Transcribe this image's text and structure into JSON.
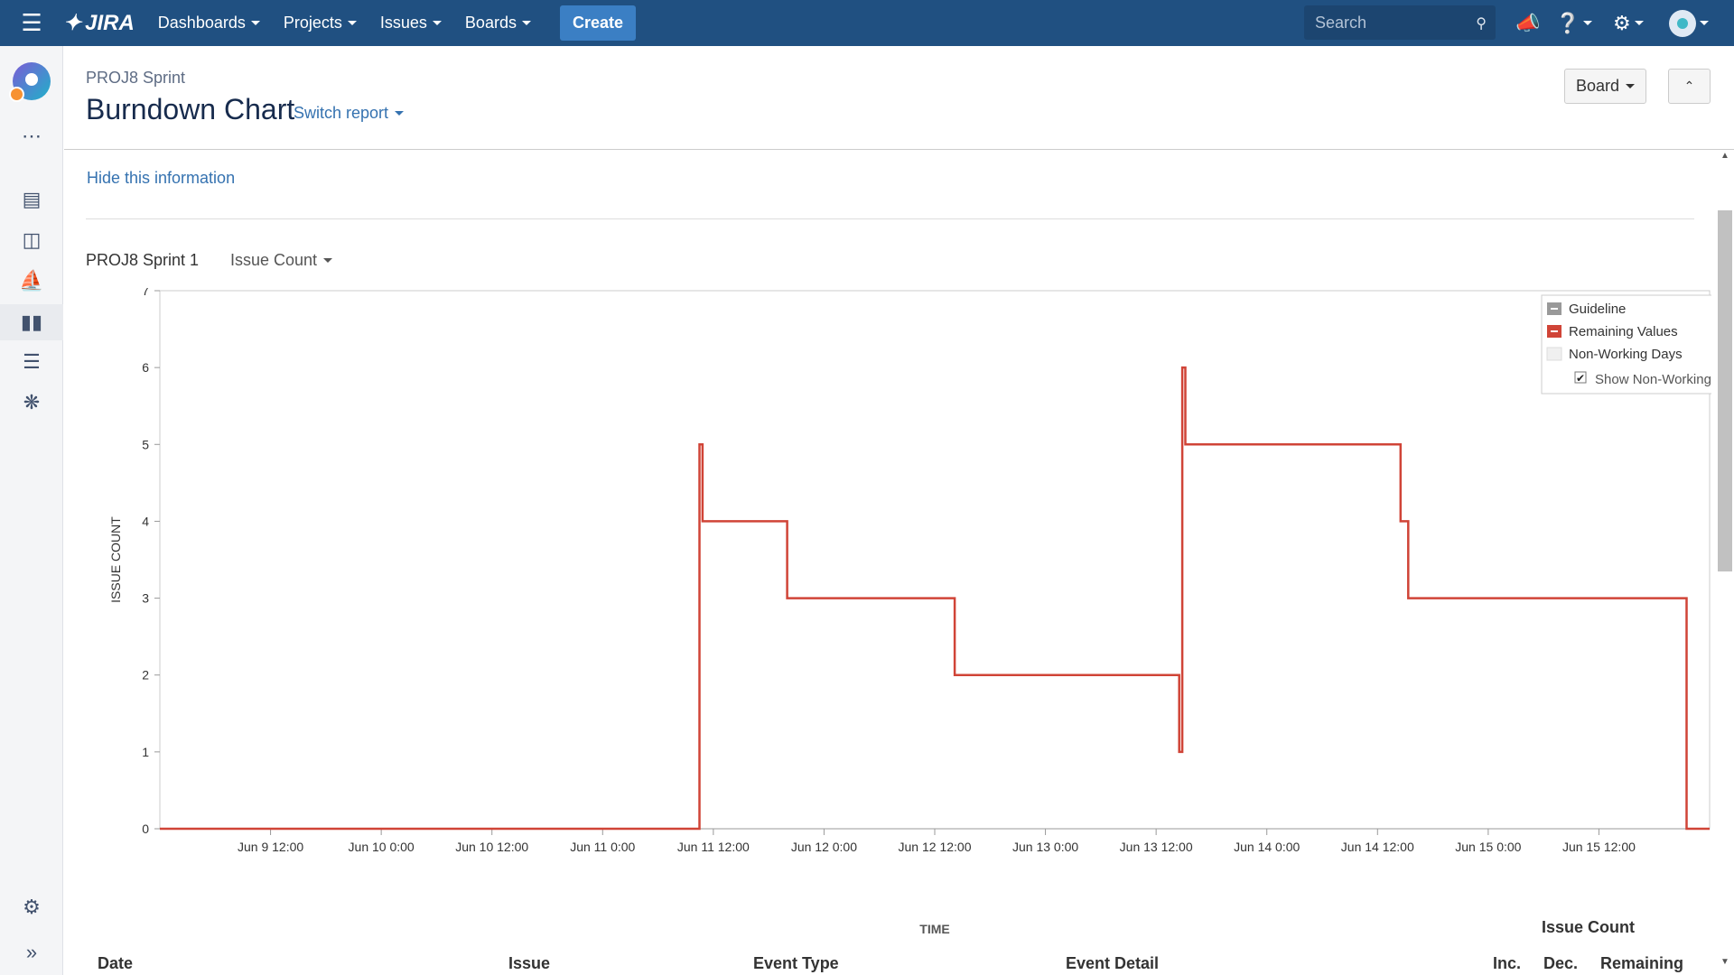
{
  "topbar": {
    "logo": "JIRA",
    "nav": [
      "Dashboards",
      "Projects",
      "Issues",
      "Boards"
    ],
    "create": "Create",
    "search_placeholder": "Search"
  },
  "page": {
    "breadcrumb": "PROJ8 Sprint",
    "title": "Burndown Chart",
    "switch_report": "Switch report",
    "board_button": "Board",
    "hide_info": "Hide this information",
    "sprint_name": "PROJ8 Sprint 1",
    "statistic": "Issue Count"
  },
  "table": {
    "group_header": "Issue Count",
    "columns": [
      "Date",
      "Issue",
      "Event Type",
      "Event Detail",
      "Inc.",
      "Dec.",
      "Remaining"
    ]
  },
  "colors": {
    "topbar": "#205081",
    "remaining": "#d04437",
    "guideline": "#999999",
    "link": "#3572b0"
  },
  "chart_data": {
    "type": "line",
    "xlabel": "TIME",
    "ylabel": "ISSUE COUNT",
    "ylim": [
      0,
      7
    ],
    "yticks": [
      0,
      1,
      2,
      3,
      4,
      5,
      6,
      7
    ],
    "xlim": [
      "2024-06-09T00:00",
      "2024-06-16T00:00"
    ],
    "xticks": [
      {
        "t": "2024-06-09T12:00",
        "label": "Jun 9 12:00"
      },
      {
        "t": "2024-06-10T00:00",
        "label": "Jun 10 0:00"
      },
      {
        "t": "2024-06-10T12:00",
        "label": "Jun 10 12:00"
      },
      {
        "t": "2024-06-11T00:00",
        "label": "Jun 11 0:00"
      },
      {
        "t": "2024-06-11T12:00",
        "label": "Jun 11 12:00"
      },
      {
        "t": "2024-06-12T00:00",
        "label": "Jun 12 0:00"
      },
      {
        "t": "2024-06-12T12:00",
        "label": "Jun 12 12:00"
      },
      {
        "t": "2024-06-13T00:00",
        "label": "Jun 13 0:00"
      },
      {
        "t": "2024-06-13T12:00",
        "label": "Jun 13 12:00"
      },
      {
        "t": "2024-06-14T00:00",
        "label": "Jun 14 0:00"
      },
      {
        "t": "2024-06-14T12:00",
        "label": "Jun 14 12:00"
      },
      {
        "t": "2024-06-15T00:00",
        "label": "Jun 15 0:00"
      },
      {
        "t": "2024-06-15T12:00",
        "label": "Jun 15 12:00"
      }
    ],
    "legend": {
      "placement": "top-right",
      "items": [
        "Guideline",
        "Remaining Values",
        "Non-Working Days"
      ],
      "checkbox_label": "Show Non-Working Days",
      "checkbox_checked": true
    },
    "series": [
      {
        "name": "Remaining Values",
        "step": true,
        "points": [
          {
            "t": "2024-06-09T00:00",
            "y": 0
          },
          {
            "t": "2024-06-11T10:30",
            "y": 0
          },
          {
            "t": "2024-06-11T10:30",
            "y": 5
          },
          {
            "t": "2024-06-11T10:50",
            "y": 5
          },
          {
            "t": "2024-06-11T10:50",
            "y": 4
          },
          {
            "t": "2024-06-11T20:00",
            "y": 4
          },
          {
            "t": "2024-06-11T20:00",
            "y": 3
          },
          {
            "t": "2024-06-12T14:10",
            "y": 3
          },
          {
            "t": "2024-06-12T14:10",
            "y": 2
          },
          {
            "t": "2024-06-13T14:30",
            "y": 2
          },
          {
            "t": "2024-06-13T14:30",
            "y": 1
          },
          {
            "t": "2024-06-13T14:50",
            "y": 1
          },
          {
            "t": "2024-06-13T14:50",
            "y": 6
          },
          {
            "t": "2024-06-13T15:10",
            "y": 6
          },
          {
            "t": "2024-06-13T15:10",
            "y": 5
          },
          {
            "t": "2024-06-14T14:30",
            "y": 5
          },
          {
            "t": "2024-06-14T14:30",
            "y": 4
          },
          {
            "t": "2024-06-14T15:20",
            "y": 4
          },
          {
            "t": "2024-06-14T15:20",
            "y": 3
          },
          {
            "t": "2024-06-15T21:30",
            "y": 3
          },
          {
            "t": "2024-06-15T21:30",
            "y": 0
          },
          {
            "t": "2024-06-16T00:00",
            "y": 0
          }
        ]
      }
    ]
  }
}
